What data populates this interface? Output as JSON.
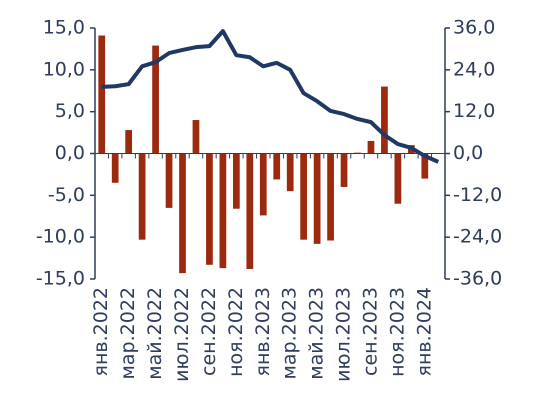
{
  "chart_data": {
    "type": "bar_line",
    "categories": [
      "янв.2022",
      null,
      "мар.2022",
      null,
      "май.2022",
      null,
      "июл.2022",
      null,
      "сен.2022",
      null,
      "ноя.2022",
      null,
      "янв.2023",
      null,
      "мар.2023",
      null,
      "май.2023",
      null,
      "июл.2023",
      null,
      "сен.2023",
      null,
      "ноя.2023",
      null,
      "янв.2024",
      null
    ],
    "series": [
      {
        "type": "bar",
        "color": "#9b2a0f",
        "values": [
          14.1,
          -3.5,
          2.8,
          -10.3,
          12.9,
          -6.5,
          -14.3,
          4.0,
          -13.3,
          -13.7,
          -6.6,
          -13.8,
          -7.4,
          -3.1,
          -4.5,
          -10.3,
          -10.8,
          -10.4,
          -4.0,
          0.1,
          1.5,
          8.0,
          -6.0,
          1.0,
          -3.0,
          null
        ]
      },
      {
        "type": "line",
        "axis": "y2",
        "color": "#1f3864",
        "values": [
          19.1,
          19.3,
          19.9,
          25.0,
          26.2,
          28.8,
          29.7,
          30.5,
          30.8,
          35.1,
          28.2,
          27.6,
          25.0,
          26.0,
          24.0,
          17.3,
          15.0,
          12.2,
          11.3,
          9.9,
          9.0,
          5.3,
          2.7,
          1.6,
          -0.7,
          -2.4
        ]
      }
    ],
    "ylim": [
      -15,
      15
    ],
    "yticks": [
      {
        "value": 15,
        "label": "15,0"
      },
      {
        "value": 10,
        "label": "10,0"
      },
      {
        "value": 5,
        "label": "5,0"
      },
      {
        "value": 0,
        "label": "0,0"
      },
      {
        "value": -5,
        "label": "-5,0"
      },
      {
        "value": -10,
        "label": "-10,0"
      },
      {
        "value": -15,
        "label": "-15,0"
      }
    ],
    "y2lim": [
      -36,
      36
    ],
    "y2ticks": [
      {
        "value": 36,
        "label": "36,0"
      },
      {
        "value": 24,
        "label": "24,0"
      },
      {
        "value": 12,
        "label": "12,0"
      },
      {
        "value": 0,
        "label": "0,0"
      },
      {
        "value": -12,
        "label": "-12,0"
      },
      {
        "value": -24,
        "label": "-24,0"
      },
      {
        "value": -36,
        "label": "-36,0"
      }
    ]
  }
}
